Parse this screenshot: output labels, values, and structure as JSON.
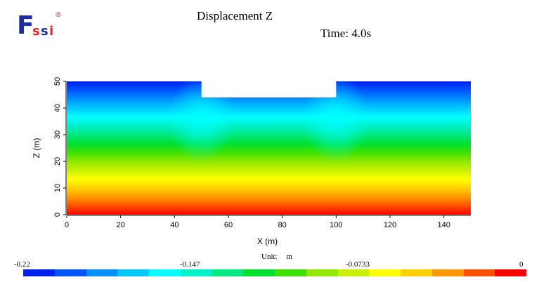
{
  "logo": {
    "text": "Fssi",
    "registered": "®"
  },
  "header": {
    "title": "Displacement Z",
    "time": "Time: 4.0s"
  },
  "chart_data": {
    "type": "heatmap",
    "title": "Displacement Z",
    "xlabel": "X (m)",
    "ylabel": "Z (m)",
    "xlim": [
      0,
      150
    ],
    "ylim": [
      0,
      50
    ],
    "x_ticks": [
      0,
      20,
      40,
      60,
      80,
      100,
      120,
      140
    ],
    "y_ticks": [
      0,
      10,
      20,
      30,
      40,
      50
    ],
    "domain_outline": [
      [
        0,
        0
      ],
      [
        150,
        0
      ],
      [
        150,
        50
      ],
      [
        100,
        50
      ],
      [
        100,
        44
      ],
      [
        50,
        44
      ],
      [
        50,
        50
      ],
      [
        0,
        50
      ]
    ],
    "field": {
      "bottom_value": 0,
      "top_value": -0.22,
      "excavation_x": [
        50,
        100
      ],
      "excavation_depth_z": 44,
      "value_at_excavation_floor": -0.16
    },
    "colorbar": {
      "unit_label": "Unit:",
      "unit": "m",
      "min": -0.22,
      "max": 0,
      "tick_labels": [
        "-0.22",
        "-0.147",
        "-0.0733",
        "0"
      ],
      "tick_values": [
        -0.22,
        -0.147,
        -0.0733,
        0
      ],
      "colors": [
        "#0020f0",
        "#0055ff",
        "#0090ff",
        "#00c8ff",
        "#00ffff",
        "#00f0c8",
        "#00e880",
        "#00e030",
        "#40e000",
        "#90e800",
        "#c8f000",
        "#ffff00",
        "#ffd000",
        "#ff9800",
        "#ff5000",
        "#ff0000"
      ]
    }
  }
}
